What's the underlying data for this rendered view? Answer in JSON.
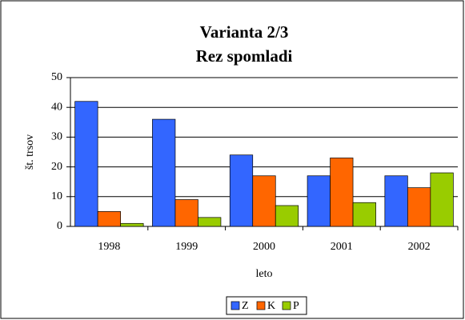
{
  "chart_data": {
    "type": "bar",
    "title": "Varianta 2/3",
    "subtitle": "Rez spomladi",
    "x_label": "leto",
    "y_label": "št. trsov",
    "categories": [
      "1998",
      "1999",
      "2000",
      "2001",
      "2002"
    ],
    "series": [
      {
        "name": "Z",
        "color": "#3366ff",
        "values": [
          42,
          36,
          24,
          17,
          17
        ]
      },
      {
        "name": "K",
        "color": "#ff6600",
        "values": [
          5,
          9,
          17,
          23,
          13
        ]
      },
      {
        "name": "P",
        "color": "#99cc00",
        "values": [
          1,
          3,
          7,
          8,
          18
        ]
      }
    ],
    "ylim": [
      0,
      50
    ],
    "yticks": [
      0,
      10,
      20,
      30,
      40,
      50
    ],
    "grid": true,
    "legend": "bottom"
  }
}
